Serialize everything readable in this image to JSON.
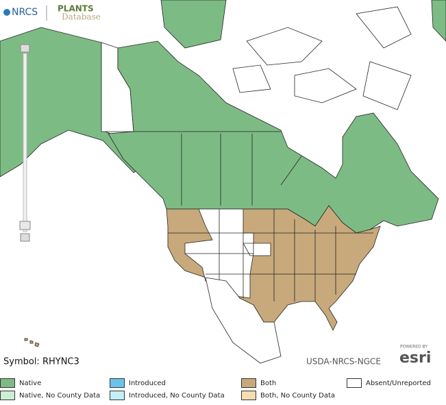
{
  "header": {
    "logo_nrcs": "NRCS",
    "logo_plants": "PLANTS",
    "logo_database": "Database"
  },
  "map": {
    "symbol": "Symbol: RHYNC3",
    "credit": "USDA-NRCS-NGCE",
    "esri_powered": "POWERED BY",
    "esri": "esri"
  },
  "legend": {
    "items": [
      {
        "label": "Native",
        "color": "#7dbb85"
      },
      {
        "label": "Introduced",
        "color": "#6cc3ea"
      },
      {
        "label": "Both",
        "color": "#c8a97b"
      },
      {
        "label": "Absent/Unreported",
        "color": "#ffffff"
      },
      {
        "label": "Native, No County Data",
        "color": "#cdeed3"
      },
      {
        "label": "Introduced, No County Data",
        "color": "#c4eff6"
      },
      {
        "label": "Both, No County Data",
        "color": "#f4ddb2"
      }
    ]
  }
}
